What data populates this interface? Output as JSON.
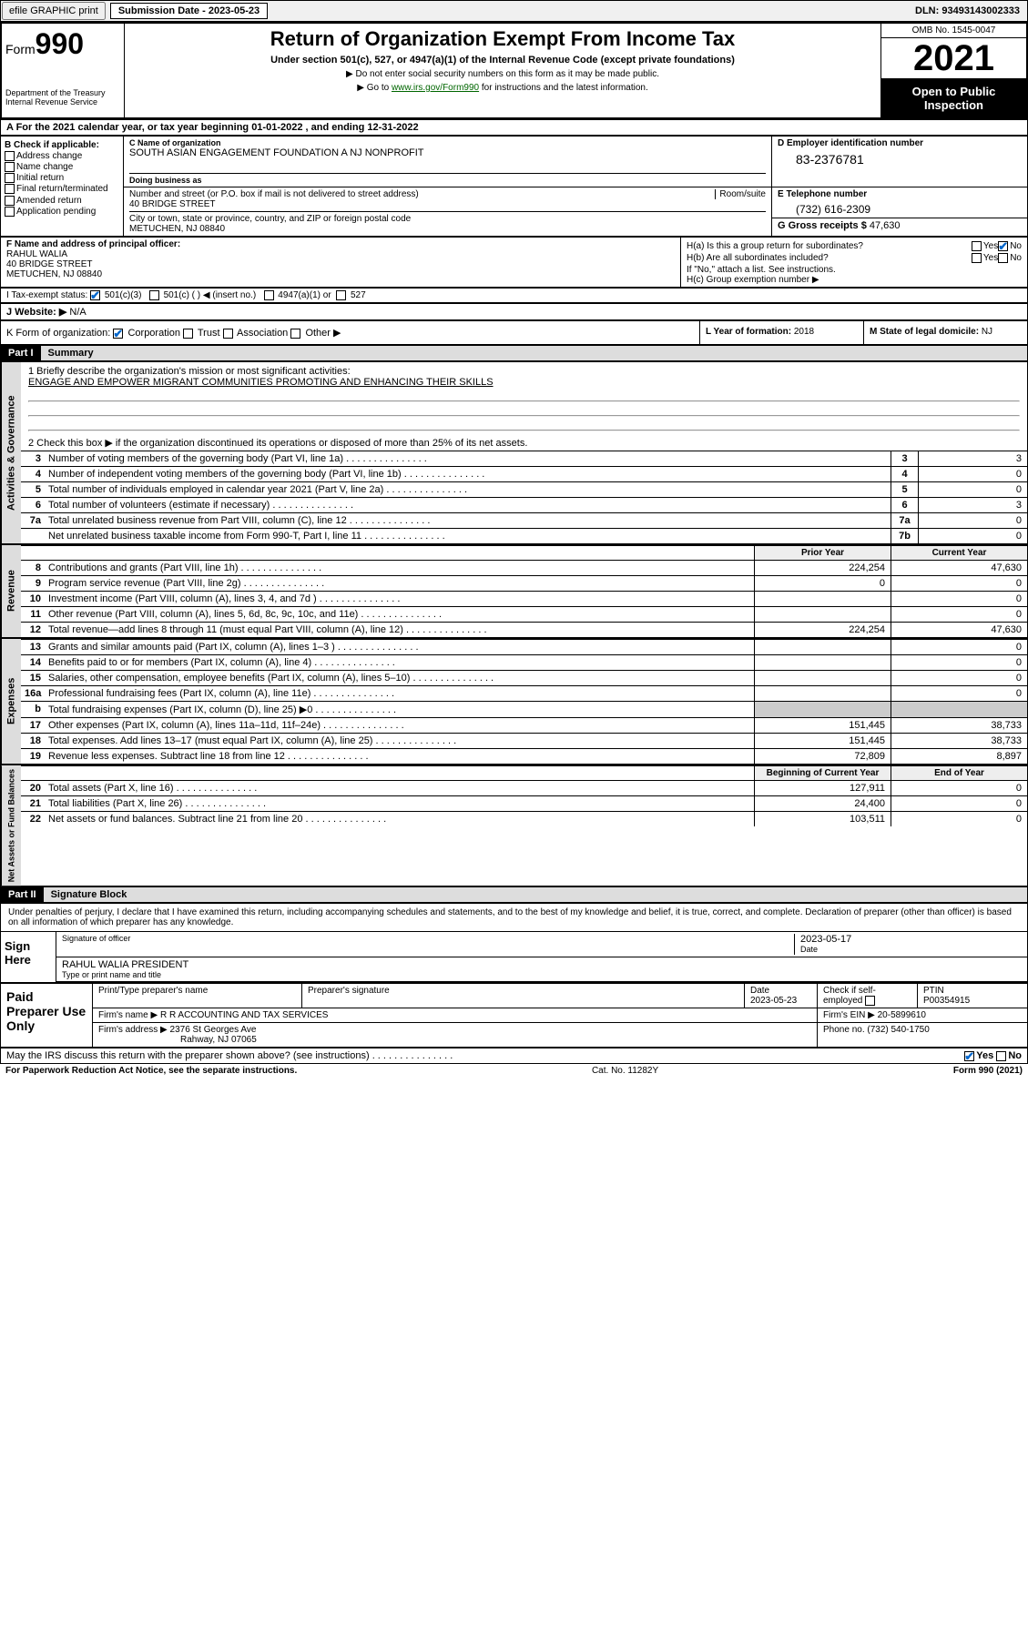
{
  "top_bar": {
    "btn1": "efile GRAPHIC print",
    "sub_label": "Submission Date - 2023-05-23",
    "dln": "DLN: 93493143002333"
  },
  "header": {
    "form_prefix": "Form",
    "form_num": "990",
    "title": "Return of Organization Exempt From Income Tax",
    "subtitle": "Under section 501(c), 527, or 4947(a)(1) of the Internal Revenue Code (except private foundations)",
    "note1": "▶ Do not enter social security numbers on this form as it may be made public.",
    "note2_pre": "▶ Go to ",
    "note2_link": "www.irs.gov/Form990",
    "note2_post": " for instructions and the latest information.",
    "dept": "Department of the Treasury Internal Revenue Service",
    "omb": "OMB No. 1545-0047",
    "year": "2021",
    "open": "Open to Public Inspection"
  },
  "section_a": "A For the 2021 calendar year, or tax year beginning 01-01-2022   , and ending 12-31-2022",
  "b": {
    "label": "B Check if applicable:",
    "opts": [
      "Address change",
      "Name change",
      "Initial return",
      "Final return/terminated",
      "Amended return",
      "Application pending"
    ]
  },
  "c": {
    "name_lbl": "C Name of organization",
    "name": "SOUTH ASIAN ENGAGEMENT FOUNDATION A NJ NONPROFIT",
    "dba_lbl": "Doing business as",
    "addr_lbl": "Number and street (or P.O. box if mail is not delivered to street address)",
    "room_lbl": "Room/suite",
    "addr": "40 BRIDGE STREET",
    "city_lbl": "City or town, state or province, country, and ZIP or foreign postal code",
    "city": "METUCHEN, NJ  08840"
  },
  "d": {
    "lbl": "D Employer identification number",
    "val": "83-2376781"
  },
  "e": {
    "lbl": "E Telephone number",
    "val": "(732) 616-2309"
  },
  "g": {
    "lbl": "G Gross receipts $ ",
    "val": "47,630"
  },
  "f": {
    "lbl": "F Name and address of principal officer:",
    "name": "RAHUL WALIA",
    "addr1": "40 BRIDGE STREET",
    "addr2": "METUCHEN, NJ  08840"
  },
  "h": {
    "a": "H(a)  Is this a group return for subordinates?",
    "b": "H(b)  Are all subordinates included?",
    "note": "If \"No,\" attach a list. See instructions.",
    "c": "H(c)  Group exemption number ▶",
    "yes": "Yes",
    "no": "No"
  },
  "i": {
    "lbl": "I   Tax-exempt status:",
    "o1": "501(c)(3)",
    "o2": "501(c) (  ) ◀ (insert no.)",
    "o3": "4947(a)(1) or",
    "o4": "527"
  },
  "j": {
    "lbl": "J   Website: ▶",
    "val": " N/A"
  },
  "k": {
    "lbl": "K Form of organization:",
    "o1": "Corporation",
    "o2": "Trust",
    "o3": "Association",
    "o4": "Other ▶"
  },
  "l": {
    "lbl": "L Year of formation: ",
    "val": "2018"
  },
  "m": {
    "lbl": "M State of legal domicile: ",
    "val": "NJ"
  },
  "part1": {
    "hdr": "Part I",
    "title": "Summary"
  },
  "mission": {
    "lbl": "1   Briefly describe the organization's mission or most significant activities:",
    "text": "ENGAGE AND EMPOWER MIGRANT COMMUNITIES PROMOTING AND ENHANCING THEIR SKILLS"
  },
  "line2": "2   Check this box ▶            if the organization discontinued its operations or disposed of more than 25% of its net assets.",
  "gov_rows": [
    {
      "n": "3",
      "d": "Number of voting members of the governing body (Part VI, line 1a)",
      "bn": "3",
      "v": "3"
    },
    {
      "n": "4",
      "d": "Number of independent voting members of the governing body (Part VI, line 1b)",
      "bn": "4",
      "v": "0"
    },
    {
      "n": "5",
      "d": "Total number of individuals employed in calendar year 2021 (Part V, line 2a)",
      "bn": "5",
      "v": "0"
    },
    {
      "n": "6",
      "d": "Total number of volunteers (estimate if necessary)",
      "bn": "6",
      "v": "3"
    },
    {
      "n": "7a",
      "d": "Total unrelated business revenue from Part VIII, column (C), line 12",
      "bn": "7a",
      "v": "0"
    },
    {
      "n": "",
      "d": "Net unrelated business taxable income from Form 990-T, Part I, line 11",
      "bn": "7b",
      "v": "0"
    }
  ],
  "col_hdrs": {
    "prior": "Prior Year",
    "curr": "Current Year",
    "boy": "Beginning of Current Year",
    "eoy": "End of Year"
  },
  "side_labels": {
    "gov": "Activities & Governance",
    "rev": "Revenue",
    "exp": "Expenses",
    "net": "Net Assets or Fund Balances"
  },
  "revenue": [
    {
      "n": "8",
      "d": "Contributions and grants (Part VIII, line 1h)",
      "p": "224,254",
      "c": "47,630"
    },
    {
      "n": "9",
      "d": "Program service revenue (Part VIII, line 2g)",
      "p": "0",
      "c": "0"
    },
    {
      "n": "10",
      "d": "Investment income (Part VIII, column (A), lines 3, 4, and 7d )",
      "p": "",
      "c": "0"
    },
    {
      "n": "11",
      "d": "Other revenue (Part VIII, column (A), lines 5, 6d, 8c, 9c, 10c, and 11e)",
      "p": "",
      "c": "0"
    },
    {
      "n": "12",
      "d": "Total revenue—add lines 8 through 11 (must equal Part VIII, column (A), line 12)",
      "p": "224,254",
      "c": "47,630"
    }
  ],
  "expenses": [
    {
      "n": "13",
      "d": "Grants and similar amounts paid (Part IX, column (A), lines 1–3 )",
      "p": "",
      "c": "0"
    },
    {
      "n": "14",
      "d": "Benefits paid to or for members (Part IX, column (A), line 4)",
      "p": "",
      "c": "0"
    },
    {
      "n": "15",
      "d": "Salaries, other compensation, employee benefits (Part IX, column (A), lines 5–10)",
      "p": "",
      "c": "0"
    },
    {
      "n": "16a",
      "d": "Professional fundraising fees (Part IX, column (A), line 11e)",
      "p": "",
      "c": "0"
    },
    {
      "n": "b",
      "d": "Total fundraising expenses (Part IX, column (D), line 25) ▶0",
      "p": "",
      "c": "",
      "shaded": true
    },
    {
      "n": "17",
      "d": "Other expenses (Part IX, column (A), lines 11a–11d, 11f–24e)",
      "p": "151,445",
      "c": "38,733"
    },
    {
      "n": "18",
      "d": "Total expenses. Add lines 13–17 (must equal Part IX, column (A), line 25)",
      "p": "151,445",
      "c": "38,733"
    },
    {
      "n": "19",
      "d": "Revenue less expenses. Subtract line 18 from line 12",
      "p": "72,809",
      "c": "8,897"
    }
  ],
  "netassets": [
    {
      "n": "20",
      "d": "Total assets (Part X, line 16)",
      "p": "127,911",
      "c": "0"
    },
    {
      "n": "21",
      "d": "Total liabilities (Part X, line 26)",
      "p": "24,400",
      "c": "0"
    },
    {
      "n": "22",
      "d": "Net assets or fund balances. Subtract line 21 from line 20",
      "p": "103,511",
      "c": "0"
    }
  ],
  "part2": {
    "hdr": "Part II",
    "title": "Signature Block"
  },
  "sig": {
    "declare": "Under penalties of perjury, I declare that I have examined this return, including accompanying schedules and statements, and to the best of my knowledge and belief, it is true, correct, and complete. Declaration of preparer (other than officer) is based on all information of which preparer has any knowledge.",
    "sign_here": "Sign Here",
    "sig_officer": "Signature of officer",
    "date_lbl": "Date",
    "date": "2023-05-17",
    "name_title": "RAHUL WALIA  PRESIDENT",
    "type_lbl": "Type or print name and title"
  },
  "paid": {
    "title": "Paid Preparer Use Only",
    "h1": "Print/Type preparer's name",
    "h2": "Preparer's signature",
    "h3": "Date",
    "h3v": "2023-05-23",
    "h4": "Check          if self-employed",
    "h5": "PTIN",
    "h5v": "P00354915",
    "firm_lbl": "Firm's name     ▶ ",
    "firm": "R R ACCOUNTING AND TAX SERVICES",
    "ein_lbl": "Firm's EIN ▶ ",
    "ein": "20-5899610",
    "addr_lbl": "Firm's address ▶ ",
    "addr1": "2376 St Georges Ave",
    "addr2": "Rahway, NJ  07065",
    "phone_lbl": "Phone no. ",
    "phone": "(732) 540-1750"
  },
  "footer": {
    "q": "May the IRS discuss this return with the preparer shown above? (see instructions)",
    "yes": "Yes",
    "no": "No",
    "pra": "For Paperwork Reduction Act Notice, see the separate instructions.",
    "cat": "Cat. No. 11282Y",
    "form": "Form 990 (2021)"
  }
}
